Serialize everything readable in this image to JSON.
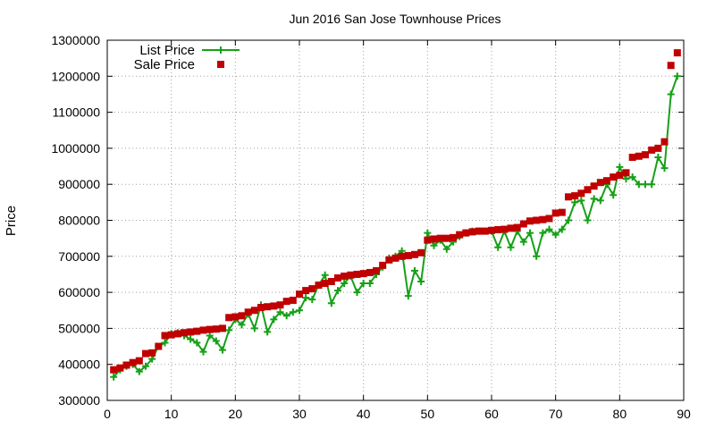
{
  "chart_data": {
    "type": "line",
    "title": "Jun 2016 San Jose Townhouse Prices",
    "xlabel": "",
    "ylabel": "Price",
    "xlim": [
      0,
      90
    ],
    "ylim": [
      300000,
      1300000
    ],
    "xticks": [
      0,
      10,
      20,
      30,
      40,
      50,
      60,
      70,
      80,
      90
    ],
    "yticks": [
      300000,
      400000,
      500000,
      600000,
      700000,
      800000,
      900000,
      1000000,
      1100000,
      1200000,
      1300000
    ],
    "grid": true,
    "legend_position": "top-left",
    "x": [
      1,
      2,
      3,
      4,
      5,
      6,
      7,
      8,
      9,
      10,
      11,
      12,
      13,
      14,
      15,
      16,
      17,
      18,
      19,
      20,
      21,
      22,
      23,
      24,
      25,
      26,
      27,
      28,
      29,
      30,
      31,
      32,
      33,
      34,
      35,
      36,
      37,
      38,
      39,
      40,
      41,
      42,
      43,
      44,
      45,
      46,
      47,
      48,
      49,
      50,
      51,
      52,
      53,
      54,
      55,
      56,
      57,
      58,
      59,
      60,
      61,
      62,
      63,
      64,
      65,
      66,
      67,
      68,
      69,
      70,
      71,
      72,
      73,
      74,
      75,
      76,
      77,
      78,
      79,
      80,
      81,
      82,
      83,
      84,
      85,
      86,
      87,
      88,
      89
    ],
    "series": [
      {
        "name": "List Price",
        "style": "line+cross",
        "color": "#16a016",
        "values": [
          365000,
          385000,
          395000,
          400000,
          380000,
          395000,
          415000,
          450000,
          460000,
          485000,
          488000,
          480000,
          470000,
          460000,
          435000,
          480000,
          465000,
          440000,
          495000,
          525000,
          510000,
          540000,
          500000,
          565000,
          490000,
          525000,
          545000,
          535000,
          545000,
          550000,
          585000,
          580000,
          620000,
          648000,
          570000,
          605000,
          625000,
          645000,
          600000,
          625000,
          625000,
          650000,
          670000,
          695000,
          700000,
          715000,
          590000,
          660000,
          630000,
          765000,
          730000,
          745000,
          720000,
          740000,
          755000,
          765000,
          770000,
          770000,
          770000,
          770000,
          725000,
          770000,
          725000,
          770000,
          740000,
          765000,
          700000,
          765000,
          775000,
          760000,
          775000,
          800000,
          850000,
          855000,
          800000,
          860000,
          855000,
          900000,
          870000,
          948000,
          915000,
          920000,
          900000,
          900000,
          900000,
          975000,
          945000,
          1150000,
          1200000
        ]
      },
      {
        "name": "Sale Price",
        "style": "square",
        "color": "#c00000",
        "values": [
          385000,
          390000,
          398000,
          405000,
          410000,
          430000,
          432000,
          450000,
          480000,
          482000,
          485000,
          488000,
          490000,
          492000,
          495000,
          497000,
          498000,
          500000,
          530000,
          532000,
          535000,
          545000,
          550000,
          558000,
          560000,
          562000,
          565000,
          575000,
          578000,
          595000,
          605000,
          610000,
          620000,
          625000,
          630000,
          640000,
          645000,
          648000,
          650000,
          652000,
          655000,
          660000,
          675000,
          690000,
          695000,
          700000,
          702000,
          705000,
          710000,
          745000,
          748000,
          750000,
          750000,
          752000,
          760000,
          765000,
          768000,
          770000,
          770000,
          772000,
          774000,
          775000,
          778000,
          780000,
          790000,
          798000,
          800000,
          802000,
          805000,
          820000,
          822000,
          865000,
          868000,
          875000,
          885000,
          895000,
          905000,
          910000,
          920000,
          925000,
          932000,
          975000,
          978000,
          982000,
          995000,
          1000000,
          1018000,
          1230000,
          1265000
        ]
      }
    ]
  }
}
